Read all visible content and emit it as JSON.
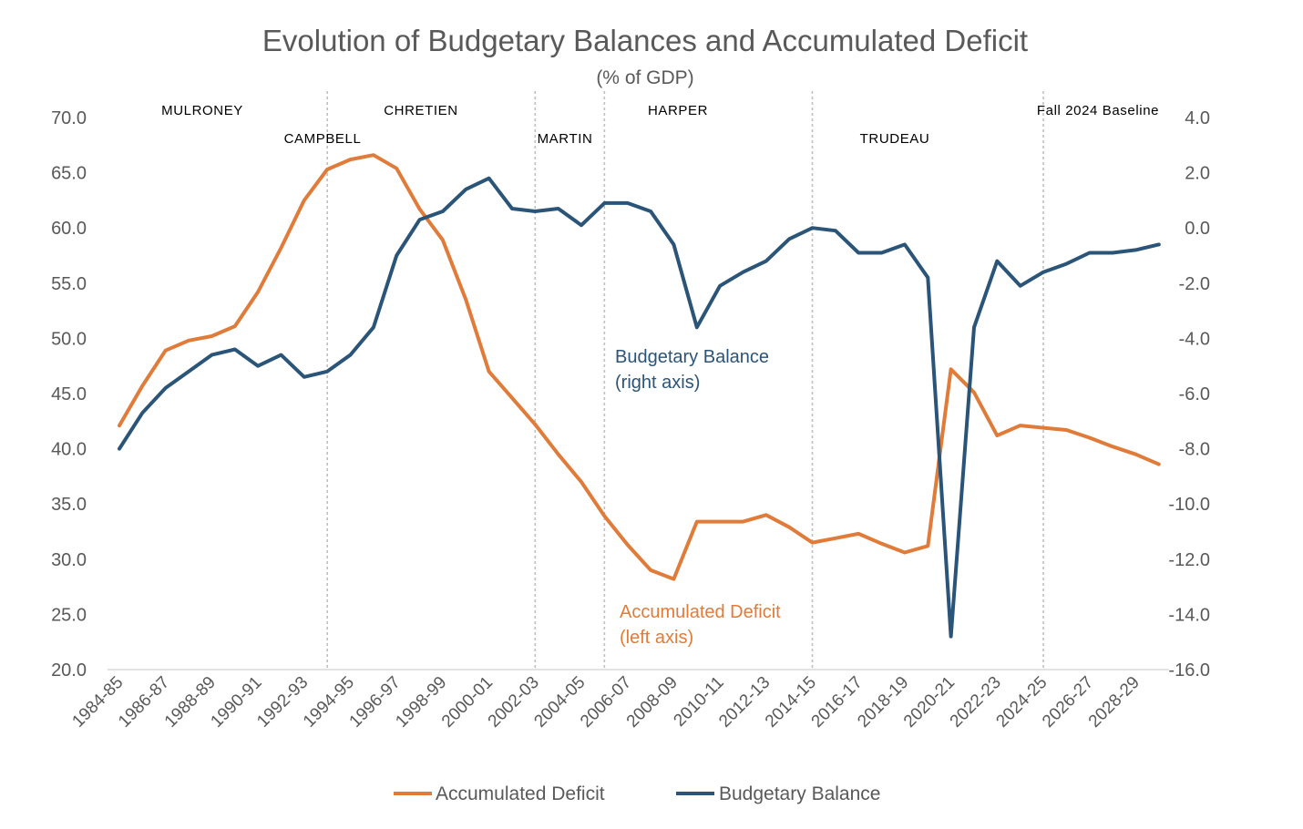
{
  "chart_data": {
    "type": "line",
    "title": "Evolution of Budgetary Balances and Accumulated Deficit",
    "subtitle": "(% of GDP)",
    "colors": {
      "accumulated_deficit": "#E07B39",
      "budgetary_balance": "#2A5478",
      "text": "#595959",
      "divider": "#BFBFBF"
    },
    "x": [
      "1984-85",
      "1985-86",
      "1986-87",
      "1987-88",
      "1988-89",
      "1989-90",
      "1990-91",
      "1991-92",
      "1992-93",
      "1993-94",
      "1994-95",
      "1995-96",
      "1996-97",
      "1997-98",
      "1998-99",
      "1999-00",
      "2000-01",
      "2001-02",
      "2002-03",
      "2003-04",
      "2004-05",
      "2005-06",
      "2006-07",
      "2007-08",
      "2008-09",
      "2009-10",
      "2010-11",
      "2011-12",
      "2012-13",
      "2013-14",
      "2014-15",
      "2015-16",
      "2016-17",
      "2017-18",
      "2018-19",
      "2019-20",
      "2020-21",
      "2021-22",
      "2022-23",
      "2023-24",
      "2024-25",
      "2025-26",
      "2026-27",
      "2027-28",
      "2028-29",
      "2029-30"
    ],
    "x_tick_labels": [
      "1984-85",
      "1986-87",
      "1988-89",
      "1990-91",
      "1992-93",
      "1994-95",
      "1996-97",
      "1998-99",
      "2000-01",
      "2002-03",
      "2004-05",
      "2006-07",
      "2008-09",
      "2010-11",
      "2012-13",
      "2014-15",
      "2016-17",
      "2018-19",
      "2020-21",
      "2022-23",
      "2024-25",
      "2026-27",
      "2028-29"
    ],
    "left_axis": {
      "ylim": [
        20,
        70
      ],
      "ticks": [
        "70.0",
        "65.0",
        "60.0",
        "55.0",
        "50.0",
        "45.0",
        "40.0",
        "35.0",
        "30.0",
        "25.0",
        "20.0"
      ]
    },
    "right_axis": {
      "ylim": [
        -16,
        4
      ],
      "ticks": [
        "4.0",
        "2.0",
        "0.0",
        "-2.0",
        "-4.0",
        "-6.0",
        "-8.0",
        "-10.0",
        "-12.0",
        "-14.0",
        "-16.0"
      ]
    },
    "series": [
      {
        "name": "Accumulated Deficit",
        "axis": "left",
        "values": [
          42.1,
          45.7,
          48.9,
          49.8,
          50.2,
          51.1,
          54.2,
          58.2,
          62.5,
          65.3,
          66.2,
          66.6,
          65.4,
          61.7,
          58.9,
          53.5,
          47.0,
          44.6,
          42.2,
          39.5,
          37.0,
          33.9,
          31.3,
          29.0,
          28.2,
          33.4,
          33.4,
          33.4,
          34.0,
          32.9,
          31.5,
          31.9,
          32.3,
          31.4,
          30.6,
          31.2,
          47.2,
          45.1,
          41.2,
          42.1,
          41.9,
          41.7,
          41.0,
          40.2,
          39.5,
          38.6
        ]
      },
      {
        "name": "Budgetary Balance",
        "axis": "right",
        "values": [
          -8.0,
          -6.7,
          -5.8,
          -5.2,
          -4.6,
          -4.4,
          -5.0,
          -4.6,
          -5.4,
          -5.2,
          -4.6,
          -3.6,
          -1.0,
          0.3,
          0.6,
          1.4,
          1.8,
          0.7,
          0.6,
          0.7,
          0.1,
          0.9,
          0.9,
          0.6,
          -0.6,
          -3.6,
          -2.1,
          -1.6,
          -1.2,
          -0.4,
          0.0,
          -0.1,
          -0.9,
          -0.9,
          -0.6,
          -1.8,
          -14.8,
          -3.6,
          -1.2,
          -2.1,
          -1.6,
          -1.3,
          -0.9,
          -0.9,
          -0.8,
          -0.6
        ]
      }
    ],
    "eras": [
      {
        "label": "MULRONEY"
      },
      {
        "label": "CAMPBELL"
      },
      {
        "label": "CHRETIEN"
      },
      {
        "label": "MARTIN"
      },
      {
        "label": "HARPER"
      },
      {
        "label": "TRUDEAU"
      },
      {
        "label": "Fall 2024 Baseline"
      }
    ],
    "era_dividers_after": [
      "1993-94",
      "2002-03",
      "2005-06",
      "2014-15",
      "2024-25"
    ],
    "annotations": {
      "balance": [
        "Budgetary Balance",
        "(right axis)"
      ],
      "deficit": [
        "Accumulated Deficit",
        "(left axis)"
      ]
    },
    "legend": {
      "position": "bottom",
      "items": [
        "Accumulated Deficit",
        "Budgetary Balance"
      ]
    },
    "grid": false
  }
}
